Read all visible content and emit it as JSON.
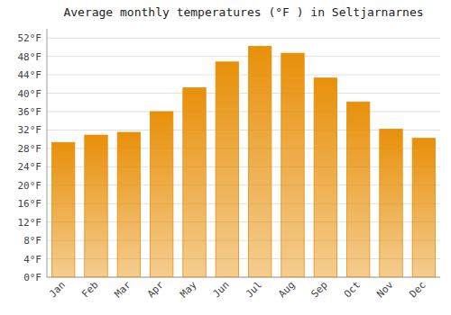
{
  "chart_data": {
    "type": "bar",
    "title": "Average monthly temperatures (°F ) in Seltjarnarnes",
    "categories": [
      "Jan",
      "Feb",
      "Mar",
      "Apr",
      "May",
      "Jun",
      "Jul",
      "Aug",
      "Sep",
      "Oct",
      "Nov",
      "Dec"
    ],
    "values": [
      29.3,
      30.9,
      31.5,
      36.0,
      41.2,
      46.8,
      50.2,
      48.7,
      43.3,
      38.1,
      32.2,
      30.2
    ],
    "color": "#E8900A",
    "ylim": [
      0,
      54
    ],
    "yticks": [
      {
        "value": 0,
        "label": "0°F"
      },
      {
        "value": 4,
        "label": "4°F"
      },
      {
        "value": 8,
        "label": "8°F"
      },
      {
        "value": 12,
        "label": "12°F"
      },
      {
        "value": 16,
        "label": "16°F"
      },
      {
        "value": 20,
        "label": "20°F"
      },
      {
        "value": 24,
        "label": "24°F"
      },
      {
        "value": 28,
        "label": "28°F"
      },
      {
        "value": 32,
        "label": "32°F"
      },
      {
        "value": 36,
        "label": "36°F"
      },
      {
        "value": 40,
        "label": "40°F"
      },
      {
        "value": 44,
        "label": "44°F"
      },
      {
        "value": 48,
        "label": "48°F"
      },
      {
        "value": 52,
        "label": "52°F"
      }
    ],
    "grid": true
  }
}
